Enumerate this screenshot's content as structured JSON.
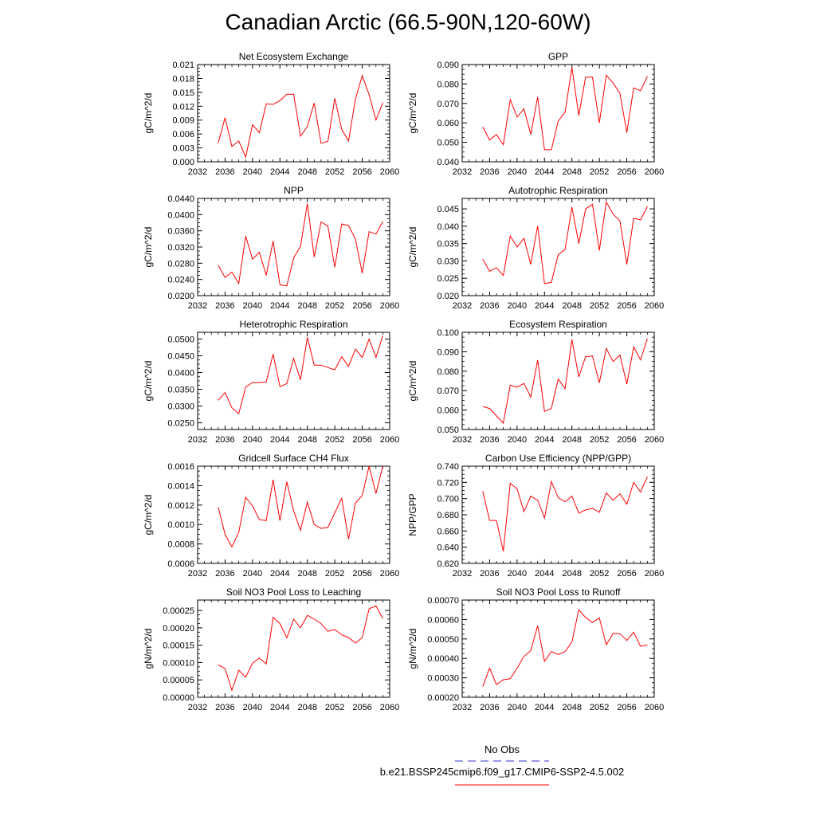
{
  "figure": {
    "title": "Canadian Arctic (66.5-90N,120-60W)"
  },
  "legend": {
    "entries": [
      {
        "label": "No Obs",
        "color": "#3333cc",
        "style": "dashed"
      },
      {
        "label": "b.e21.BSSP245cmip6.f09_g17.CMIP6-SSP2-4.5.002",
        "color": "#ff0000",
        "style": "solid"
      }
    ]
  },
  "chart_data": [
    {
      "type": "line",
      "title": "Net Ecosystem Exchange",
      "ylabel": "gC/m^2/d",
      "xlim": [
        2032,
        2060
      ],
      "x_ticks": [
        "2032",
        "2036",
        "2040",
        "2044",
        "2048",
        "2052",
        "2056",
        "2060"
      ],
      "ylim": [
        0.0,
        0.021
      ],
      "y_ticks": [
        "0.000",
        "0.003",
        "0.006",
        "0.009",
        "0.012",
        "0.015",
        "0.018",
        "0.021"
      ],
      "series": [
        {
          "color": "#ff0000",
          "x": [
            2035,
            2036,
            2037,
            2038,
            2039,
            2040,
            2041,
            2042,
            2043,
            2044,
            2045,
            2046,
            2047,
            2048,
            2049,
            2050,
            2051,
            2052,
            2053,
            2054,
            2055,
            2056,
            2057,
            2058,
            2059
          ],
          "y": [
            0.004,
            0.0095,
            0.0033,
            0.0045,
            0.001,
            0.008,
            0.0063,
            0.0125,
            0.0124,
            0.0132,
            0.0146,
            0.0146,
            0.0055,
            0.0076,
            0.0127,
            0.004,
            0.0044,
            0.0137,
            0.007,
            0.0045,
            0.0135,
            0.0186,
            0.0145,
            0.009,
            0.0128
          ]
        }
      ]
    },
    {
      "type": "line",
      "title": "GPP",
      "ylabel": "gC/m^2/d",
      "xlim": [
        2032,
        2060
      ],
      "x_ticks": [
        "2032",
        "2036",
        "2040",
        "2044",
        "2048",
        "2052",
        "2056",
        "2060"
      ],
      "ylim": [
        0.04,
        0.09
      ],
      "y_ticks": [
        "0.040",
        "0.050",
        "0.060",
        "0.070",
        "0.080",
        "0.090"
      ],
      "series": [
        {
          "color": "#ff0000",
          "x": [
            2035,
            2036,
            2037,
            2038,
            2039,
            2040,
            2041,
            2042,
            2043,
            2044,
            2045,
            2046,
            2047,
            2048,
            2049,
            2050,
            2051,
            2052,
            2053,
            2054,
            2055,
            2056,
            2057,
            2058,
            2059
          ],
          "y": [
            0.058,
            0.0512,
            0.054,
            0.0488,
            0.072,
            0.063,
            0.0672,
            0.054,
            0.0733,
            0.0462,
            0.0462,
            0.061,
            0.0655,
            0.0885,
            0.0638,
            0.0835,
            0.0835,
            0.06,
            0.0845,
            0.0805,
            0.0752,
            0.055,
            0.078,
            0.0765,
            0.084
          ]
        }
      ]
    },
    {
      "type": "line",
      "title": "NPP",
      "ylabel": "gC/m^2/d",
      "xlim": [
        2032,
        2060
      ],
      "x_ticks": [
        "2032",
        "2036",
        "2040",
        "2044",
        "2048",
        "2052",
        "2056",
        "2060"
      ],
      "ylim": [
        0.02,
        0.044
      ],
      "y_ticks": [
        "0.0200",
        "0.0240",
        "0.0280",
        "0.0320",
        "0.0360",
        "0.0400",
        "0.0440"
      ],
      "series": [
        {
          "color": "#ff0000",
          "x": [
            2035,
            2036,
            2037,
            2038,
            2039,
            2040,
            2041,
            2042,
            2043,
            2044,
            2045,
            2046,
            2047,
            2048,
            2049,
            2050,
            2051,
            2052,
            2053,
            2054,
            2055,
            2056,
            2057,
            2058,
            2059
          ],
          "y": [
            0.0275,
            0.0245,
            0.0258,
            0.023,
            0.0347,
            0.029,
            0.0307,
            0.025,
            0.0335,
            0.0227,
            0.0224,
            0.0293,
            0.0322,
            0.0427,
            0.0295,
            0.0382,
            0.0372,
            0.027,
            0.0377,
            0.0373,
            0.034,
            0.0255,
            0.0358,
            0.0352,
            0.0383
          ]
        }
      ]
    },
    {
      "type": "line",
      "title": "Autotrophic Respiration",
      "ylabel": "gC/m^2/d",
      "xlim": [
        2032,
        2060
      ],
      "x_ticks": [
        "2032",
        "2036",
        "2040",
        "2044",
        "2048",
        "2052",
        "2056",
        "2060"
      ],
      "ylim": [
        0.02,
        0.048
      ],
      "y_ticks": [
        "0.020",
        "0.025",
        "0.030",
        "0.035",
        "0.040",
        "0.045"
      ],
      "series": [
        {
          "color": "#ff0000",
          "x": [
            2035,
            2036,
            2037,
            2038,
            2039,
            2040,
            2041,
            2042,
            2043,
            2044,
            2045,
            2046,
            2047,
            2048,
            2049,
            2050,
            2051,
            2052,
            2053,
            2054,
            2055,
            2056,
            2057,
            2058,
            2059
          ],
          "y": [
            0.0305,
            0.027,
            0.028,
            0.0258,
            0.0372,
            0.034,
            0.0365,
            0.029,
            0.0401,
            0.0235,
            0.0238,
            0.0318,
            0.0333,
            0.0455,
            0.035,
            0.045,
            0.0463,
            0.033,
            0.047,
            0.0435,
            0.0415,
            0.029,
            0.0423,
            0.0418,
            0.0457
          ]
        }
      ]
    },
    {
      "type": "line",
      "title": "Heterotrophic Respiration",
      "ylabel": "gC/m^2/d",
      "xlim": [
        2032,
        2060
      ],
      "x_ticks": [
        "2032",
        "2036",
        "2040",
        "2044",
        "2048",
        "2052",
        "2056",
        "2060"
      ],
      "ylim": [
        0.023,
        0.052
      ],
      "y_ticks": [
        "0.0250",
        "0.0300",
        "0.0350",
        "0.0400",
        "0.0450",
        "0.0500"
      ],
      "series": [
        {
          "color": "#ff0000",
          "x": [
            2035,
            2036,
            2037,
            2038,
            2039,
            2040,
            2041,
            2042,
            2043,
            2044,
            2045,
            2046,
            2047,
            2048,
            2049,
            2050,
            2051,
            2052,
            2053,
            2054,
            2055,
            2056,
            2057,
            2058,
            2059
          ],
          "y": [
            0.0317,
            0.034,
            0.0295,
            0.0277,
            0.0357,
            0.037,
            0.037,
            0.0372,
            0.0455,
            0.0358,
            0.0367,
            0.0442,
            0.0378,
            0.0505,
            0.0422,
            0.0422,
            0.0415,
            0.0408,
            0.0447,
            0.0418,
            0.047,
            0.0445,
            0.05,
            0.0445,
            0.051
          ]
        }
      ]
    },
    {
      "type": "line",
      "title": "Ecosystem Respiration",
      "ylabel": "gC/m^2/d",
      "xlim": [
        2032,
        2060
      ],
      "x_ticks": [
        "2032",
        "2036",
        "2040",
        "2044",
        "2048",
        "2052",
        "2056",
        "2060"
      ],
      "ylim": [
        0.05,
        0.1
      ],
      "y_ticks": [
        "0.050",
        "0.060",
        "0.070",
        "0.080",
        "0.090",
        "0.100"
      ],
      "series": [
        {
          "color": "#ff0000",
          "x": [
            2035,
            2036,
            2037,
            2038,
            2039,
            2040,
            2041,
            2042,
            2043,
            2044,
            2045,
            2046,
            2047,
            2048,
            2049,
            2050,
            2051,
            2052,
            2053,
            2054,
            2055,
            2056,
            2057,
            2058,
            2059
          ],
          "y": [
            0.0618,
            0.0608,
            0.057,
            0.0533,
            0.0728,
            0.0718,
            0.0737,
            0.0667,
            0.0857,
            0.0593,
            0.0608,
            0.076,
            0.071,
            0.0963,
            0.077,
            0.0875,
            0.0878,
            0.074,
            0.0917,
            0.085,
            0.0883,
            0.0733,
            0.0925,
            0.0858,
            0.0968
          ]
        }
      ]
    },
    {
      "type": "line",
      "title": "Gridcell Surface CH4 Flux",
      "ylabel": "gC/m^2/d",
      "xlim": [
        2032,
        2060
      ],
      "x_ticks": [
        "2032",
        "2036",
        "2040",
        "2044",
        "2048",
        "2052",
        "2056",
        "2060"
      ],
      "ylim": [
        0.0006,
        0.0016
      ],
      "y_ticks": [
        "0.0006",
        "0.0008",
        "0.0010",
        "0.0012",
        "0.0014",
        "0.0016"
      ],
      "series": [
        {
          "color": "#ff0000",
          "x": [
            2035,
            2036,
            2037,
            2038,
            2039,
            2040,
            2041,
            2042,
            2043,
            2044,
            2045,
            2046,
            2047,
            2048,
            2049,
            2050,
            2051,
            2052,
            2053,
            2054,
            2055,
            2056,
            2057,
            2058,
            2059
          ],
          "y": [
            0.00118,
            0.0009,
            0.00077,
            0.00092,
            0.00128,
            0.00119,
            0.00105,
            0.00104,
            0.00146,
            0.00104,
            0.00144,
            0.00114,
            0.00094,
            0.00123,
            0.001,
            0.00096,
            0.00097,
            0.00112,
            0.00127,
            0.00085,
            0.00122,
            0.0013,
            0.0016,
            0.00132,
            0.0016
          ]
        }
      ]
    },
    {
      "type": "line",
      "title": "Carbon Use Efficiency (NPP/GPP)",
      "ylabel": "NPP/GPP",
      "xlim": [
        2032,
        2060
      ],
      "x_ticks": [
        "2032",
        "2036",
        "2040",
        "2044",
        "2048",
        "2052",
        "2056",
        "2060"
      ],
      "ylim": [
        0.62,
        0.74
      ],
      "y_ticks": [
        "0.620",
        "0.640",
        "0.660",
        "0.680",
        "0.700",
        "0.720",
        "0.740"
      ],
      "series": [
        {
          "color": "#ff0000",
          "x": [
            2035,
            2036,
            2037,
            2038,
            2039,
            2040,
            2041,
            2042,
            2043,
            2044,
            2045,
            2046,
            2047,
            2048,
            2049,
            2050,
            2051,
            2052,
            2053,
            2054,
            2055,
            2056,
            2057,
            2058,
            2059
          ],
          "y": [
            0.709,
            0.673,
            0.673,
            0.635,
            0.719,
            0.712,
            0.684,
            0.703,
            0.698,
            0.676,
            0.721,
            0.701,
            0.696,
            0.703,
            0.682,
            0.686,
            0.688,
            0.683,
            0.707,
            0.698,
            0.706,
            0.693,
            0.72,
            0.708,
            0.727
          ]
        }
      ]
    },
    {
      "type": "line",
      "title": "Soil NO3 Pool Loss to Leaching",
      "ylabel": "gN/m^2/d",
      "xlim": [
        2032,
        2060
      ],
      "x_ticks": [
        "2032",
        "2036",
        "2040",
        "2044",
        "2048",
        "2052",
        "2056",
        "2060"
      ],
      "ylim": [
        0.0,
        0.00028
      ],
      "y_ticks": [
        "0.00000",
        "0.00005",
        "0.00010",
        "0.00015",
        "0.00020",
        "0.00025"
      ],
      "series": [
        {
          "color": "#ff0000",
          "x": [
            2035,
            2036,
            2037,
            2038,
            2039,
            2040,
            2041,
            2042,
            2043,
            2044,
            2045,
            2046,
            2047,
            2048,
            2049,
            2050,
            2051,
            2052,
            2053,
            2054,
            2055,
            2056,
            2057,
            2058,
            2059
          ],
          "y": [
            9.3e-05,
            8.3e-05,
            2e-05,
            7.8e-05,
            5.8e-05,
            9.8e-05,
            0.000113,
            9.6e-05,
            0.00023,
            0.000212,
            0.000171,
            0.000225,
            0.0002,
            0.000236,
            0.000225,
            0.000212,
            0.00019,
            0.000195,
            0.00018,
            0.000172,
            0.000156,
            0.000172,
            0.000255,
            0.000263,
            0.000227
          ]
        }
      ]
    },
    {
      "type": "line",
      "title": "Soil NO3 Pool Loss to Runoff",
      "ylabel": "gN/m^2/d",
      "xlim": [
        2032,
        2060
      ],
      "x_ticks": [
        "2032",
        "2036",
        "2040",
        "2044",
        "2048",
        "2052",
        "2056",
        "2060"
      ],
      "ylim": [
        0.0002,
        0.0007
      ],
      "y_ticks": [
        "0.00020",
        "0.00030",
        "0.00040",
        "0.00050",
        "0.00060",
        "0.00070"
      ],
      "series": [
        {
          "color": "#ff0000",
          "x": [
            2035,
            2036,
            2037,
            2038,
            2039,
            2040,
            2041,
            2042,
            2043,
            2044,
            2045,
            2046,
            2047,
            2048,
            2049,
            2050,
            2051,
            2052,
            2053,
            2054,
            2055,
            2056,
            2057,
            2058,
            2059
          ],
          "y": [
            0.000255,
            0.00035,
            0.000265,
            0.00029,
            0.000295,
            0.00035,
            0.00041,
            0.00044,
            0.000568,
            0.000385,
            0.000435,
            0.00042,
            0.000435,
            0.000485,
            0.00065,
            0.00061,
            0.000585,
            0.000608,
            0.00047,
            0.000528,
            0.000527,
            0.000492,
            0.000535,
            0.000462,
            0.00047
          ]
        }
      ]
    }
  ]
}
